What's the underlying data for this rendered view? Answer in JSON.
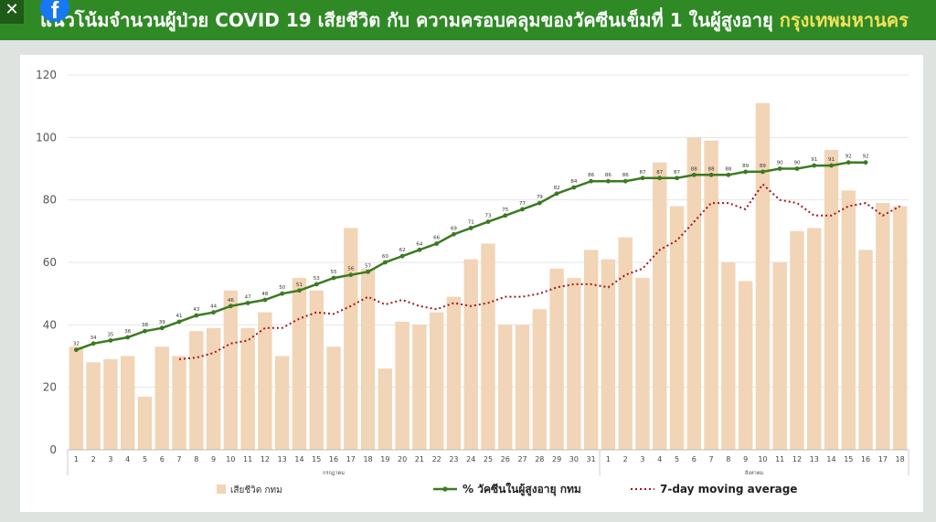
{
  "header": {
    "title_main": "แนวโน้มจำนวนผู้ป่วย COVID 19 เสียชีวิต กับ ความครอบคลุมของวัคซีนเข็มที่ 1 ในผู้สูงอายุ ",
    "title_highlight": "กรุงเทพมหานคร",
    "close_glyph": "✕",
    "fb_glyph": "f"
  },
  "chart_data": {
    "type": "bar",
    "categories": [
      "1",
      "2",
      "3",
      "4",
      "5",
      "6",
      "7",
      "8",
      "9",
      "10",
      "11",
      "12",
      "13",
      "14",
      "15",
      "16",
      "17",
      "18",
      "19",
      "20",
      "21",
      "22",
      "23",
      "24",
      "25",
      "26",
      "27",
      "28",
      "29",
      "30",
      "31",
      "1",
      "2",
      "3",
      "4",
      "5",
      "6",
      "7",
      "8",
      "9",
      "10",
      "11",
      "12",
      "13",
      "14",
      "15",
      "16",
      "17",
      "18"
    ],
    "month_labels": [
      "กรกฎาคม",
      "สิงหาคม"
    ],
    "ylim": [
      0,
      120
    ],
    "yticks": [
      0,
      20,
      40,
      60,
      80,
      100,
      120
    ],
    "grid": true,
    "legend_position": "bottom",
    "series": [
      {
        "name": "เสียชีวิต กทม",
        "kind": "bar",
        "color": "#f2d4b6",
        "values": [
          33,
          28,
          29,
          30,
          17,
          33,
          30,
          38,
          39,
          51,
          39,
          44,
          30,
          55,
          51,
          33,
          71,
          58,
          26,
          41,
          40,
          44,
          49,
          61,
          66,
          40,
          40,
          45,
          58,
          55,
          64,
          61,
          68,
          55,
          92,
          78,
          100,
          99,
          60,
          54,
          111,
          60,
          70,
          71,
          96,
          83,
          64,
          79,
          78
        ]
      },
      {
        "name": "% วัคซีนในผู้สูงอายุ กทม",
        "kind": "line",
        "color": "#3b7a22",
        "values": [
          32,
          34,
          35,
          36,
          38,
          39,
          41,
          43,
          44,
          46,
          47,
          48,
          50,
          51,
          53,
          55,
          56,
          57,
          60,
          62,
          64,
          66,
          69,
          71,
          73,
          75,
          77,
          79,
          82,
          84,
          86,
          86,
          86,
          87,
          87,
          87,
          88,
          88,
          88,
          89,
          89,
          90,
          90,
          91,
          91,
          92,
          92,
          null,
          null
        ]
      },
      {
        "name": "7-day moving average",
        "kind": "line",
        "dashed": true,
        "color": "#a3161d",
        "values": [
          null,
          null,
          null,
          null,
          null,
          null,
          29,
          29.5,
          31,
          34,
          35,
          39,
          39,
          42,
          44,
          43.5,
          46,
          49,
          46.5,
          48,
          46,
          45,
          47,
          46,
          47,
          49,
          49,
          50,
          52,
          53,
          53,
          52,
          56,
          58,
          64,
          67,
          73,
          79,
          79,
          77,
          85,
          80,
          79,
          75,
          75,
          78,
          79,
          75,
          78
        ]
      }
    ]
  }
}
